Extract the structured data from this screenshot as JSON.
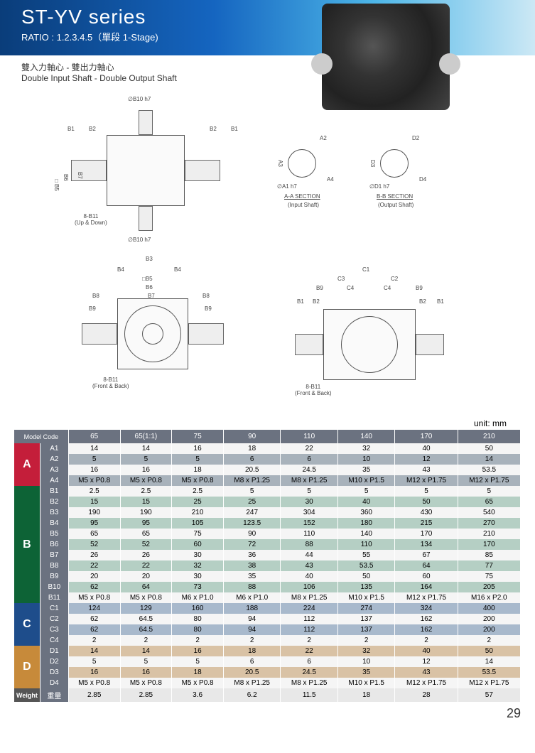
{
  "header": {
    "title": "ST-YV series",
    "ratio": "RATIO : 1.2.3.4.5（單段 1-Stage)"
  },
  "subtitle": {
    "cn": "雙入力軸心 - 雙出力軸心",
    "en": "Double Input Shaft - Double Output Shaft"
  },
  "diagram_labels": {
    "b10_top": "∅B10 h7",
    "b10_bot": "∅B10 h7",
    "b1": "B1",
    "b2": "B2",
    "b3": "B3",
    "b4": "B4",
    "b5": "□B5",
    "b6": "B6",
    "b7": "B7",
    "b8": "B8",
    "b9": "B9",
    "b11_ud": "8-B11\n(Up & Down)",
    "b11_fb": "8-B11\n(Front & Back)",
    "a1": "∅A1 h7",
    "a2": "A2",
    "a3": "A3",
    "a4": "A4",
    "aa_section": "A-A SECTION",
    "input_shaft": "(Input Shaft)",
    "d1": "∅D1 h7",
    "d2": "D2",
    "d3": "D3",
    "d4": "D4",
    "bb_section": "B-B SECTION",
    "output_shaft": "(Output Shaft)",
    "c1": "C1",
    "c2": "C2",
    "c3": "C3",
    "c4": "C4"
  },
  "unit": "unit: mm",
  "table": {
    "model_header": "Model Code",
    "models": [
      "65",
      "65(1:1)",
      "75",
      "90",
      "110",
      "140",
      "170",
      "210"
    ],
    "sections": {
      "A": {
        "color": "#c41e3a",
        "rows": [
          {
            "code": "A1",
            "vals": [
              "14",
              "14",
              "16",
              "18",
              "22",
              "32",
              "40",
              "50"
            ],
            "stripe": "light"
          },
          {
            "code": "A2",
            "vals": [
              "5",
              "5",
              "5",
              "6",
              "6",
              "10",
              "12",
              "14"
            ],
            "stripe": "dark"
          },
          {
            "code": "A3",
            "vals": [
              "16",
              "16",
              "18",
              "20.5",
              "24.5",
              "35",
              "43",
              "53.5"
            ],
            "stripe": "light"
          },
          {
            "code": "A4",
            "vals": [
              "M5 x P0.8",
              "M5 x P0.8",
              "M5 x P0.8",
              "M8 x P1.25",
              "M8 x P1.25",
              "M10 x P1.5",
              "M12 x P1.75",
              "M12 x P1.75"
            ],
            "stripe": "dark"
          }
        ]
      },
      "B": {
        "color": "#0d6336",
        "rows": [
          {
            "code": "B1",
            "vals": [
              "2.5",
              "2.5",
              "2.5",
              "5",
              "5",
              "5",
              "5",
              "5"
            ],
            "stripe": "light"
          },
          {
            "code": "B2",
            "vals": [
              "15",
              "15",
              "25",
              "25",
              "30",
              "40",
              "50",
              "65"
            ],
            "stripe": "dark"
          },
          {
            "code": "B3",
            "vals": [
              "190",
              "190",
              "210",
              "247",
              "304",
              "360",
              "430",
              "540"
            ],
            "stripe": "light"
          },
          {
            "code": "B4",
            "vals": [
              "95",
              "95",
              "105",
              "123.5",
              "152",
              "180",
              "215",
              "270"
            ],
            "stripe": "dark"
          },
          {
            "code": "B5",
            "vals": [
              "65",
              "65",
              "75",
              "90",
              "110",
              "140",
              "170",
              "210"
            ],
            "stripe": "light"
          },
          {
            "code": "B6",
            "vals": [
              "52",
              "52",
              "60",
              "72",
              "88",
              "110",
              "134",
              "170"
            ],
            "stripe": "dark"
          },
          {
            "code": "B7",
            "vals": [
              "26",
              "26",
              "30",
              "36",
              "44",
              "55",
              "67",
              "85"
            ],
            "stripe": "light"
          },
          {
            "code": "B8",
            "vals": [
              "22",
              "22",
              "32",
              "38",
              "43",
              "53.5",
              "64",
              "77"
            ],
            "stripe": "dark"
          },
          {
            "code": "B9",
            "vals": [
              "20",
              "20",
              "30",
              "35",
              "40",
              "50",
              "60",
              "75"
            ],
            "stripe": "light"
          },
          {
            "code": "B10",
            "vals": [
              "62",
              "64",
              "73",
              "88",
              "106",
              "135",
              "164",
              "205"
            ],
            "stripe": "dark"
          },
          {
            "code": "B11",
            "vals": [
              "M5 x P0.8",
              "M5 x P0.8",
              "M6 x P1.0",
              "M6 x P1.0",
              "M8 x P1.25",
              "M10 x P1.5",
              "M12 x P1.75",
              "M16 x P2.0"
            ],
            "stripe": "light"
          }
        ]
      },
      "C": {
        "color": "#1e4d8b",
        "rows": [
          {
            "code": "C1",
            "vals": [
              "124",
              "129",
              "160",
              "188",
              "224",
              "274",
              "324",
              "400"
            ],
            "stripe": "dark"
          },
          {
            "code": "C2",
            "vals": [
              "62",
              "64.5",
              "80",
              "94",
              "112",
              "137",
              "162",
              "200"
            ],
            "stripe": "light"
          },
          {
            "code": "C3",
            "vals": [
              "62",
              "64.5",
              "80",
              "94",
              "112",
              "137",
              "162",
              "200"
            ],
            "stripe": "dark"
          },
          {
            "code": "C4",
            "vals": [
              "2",
              "2",
              "2",
              "2",
              "2",
              "2",
              "2",
              "2"
            ],
            "stripe": "light"
          }
        ]
      },
      "D": {
        "color": "#c78a3a",
        "rows": [
          {
            "code": "D1",
            "vals": [
              "14",
              "14",
              "16",
              "18",
              "22",
              "32",
              "40",
              "50"
            ],
            "stripe": "dark"
          },
          {
            "code": "D2",
            "vals": [
              "5",
              "5",
              "5",
              "6",
              "6",
              "10",
              "12",
              "14"
            ],
            "stripe": "light"
          },
          {
            "code": "D3",
            "vals": [
              "16",
              "16",
              "18",
              "20.5",
              "24.5",
              "35",
              "43",
              "53.5"
            ],
            "stripe": "dark"
          },
          {
            "code": "D4",
            "vals": [
              "M5 x P0.8",
              "M5 x P0.8",
              "M5 x P0.8",
              "M8 x P1.25",
              "M8 x P1.25",
              "M10 x P1.5",
              "M12 x P1.75",
              "M12 x P1.75"
            ],
            "stripe": "light"
          }
        ]
      }
    },
    "weight": {
      "label": "Weight",
      "cn": "重量",
      "vals": [
        "2.85",
        "2.85",
        "3.6",
        "6.2",
        "11.5",
        "18",
        "28",
        "57"
      ]
    }
  },
  "page_number": "29"
}
